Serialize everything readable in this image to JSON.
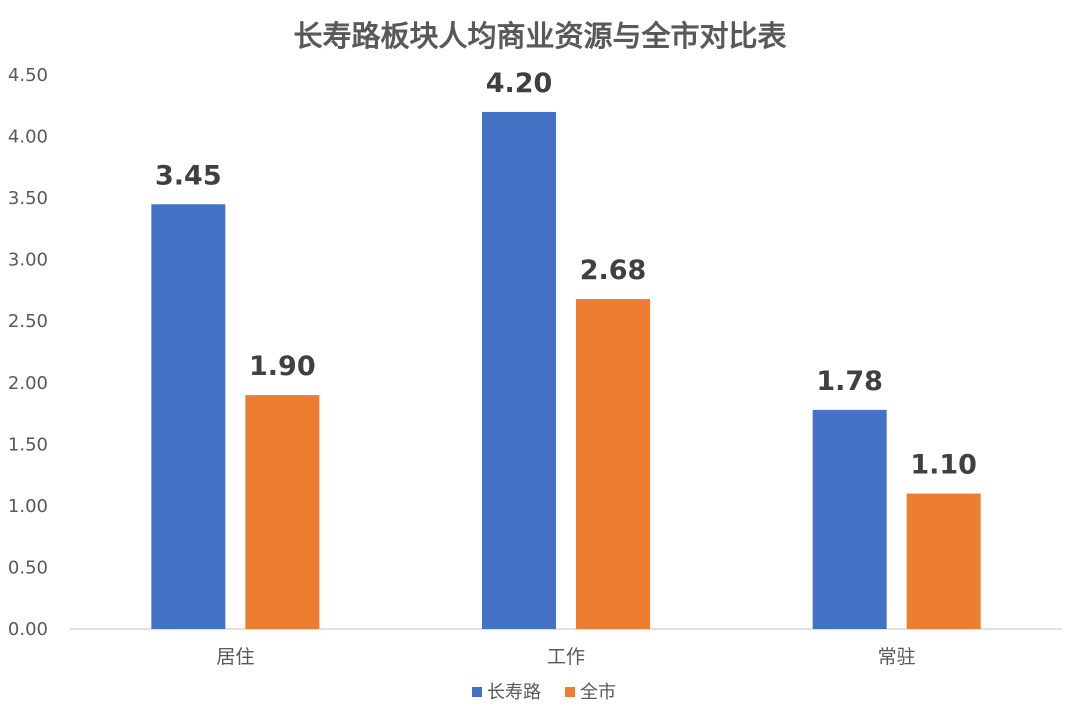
{
  "chart_data": {
    "type": "bar",
    "title": "长寿路板块人均商业资源与全市对比表",
    "xlabel": "",
    "ylabel": "",
    "categories": [
      "居住",
      "工作",
      "常驻"
    ],
    "series": [
      {
        "name": "长寿路",
        "values": [
          3.45,
          4.2,
          1.78
        ],
        "labels": [
          "3.45",
          "4.20",
          "1.78"
        ],
        "color": "#4472C4"
      },
      {
        "name": "全市",
        "values": [
          1.9,
          2.68,
          1.1
        ],
        "labels": [
          "1.90",
          "2.68",
          "1.10"
        ],
        "color": "#ED7D31"
      }
    ],
    "ylim": [
      0,
      4.5
    ],
    "yticks": [
      "0.00",
      "0.50",
      "1.00",
      "1.50",
      "2.00",
      "2.50",
      "3.00",
      "3.50",
      "4.00",
      "4.50"
    ],
    "grid": false,
    "legend": "bottom-center"
  }
}
